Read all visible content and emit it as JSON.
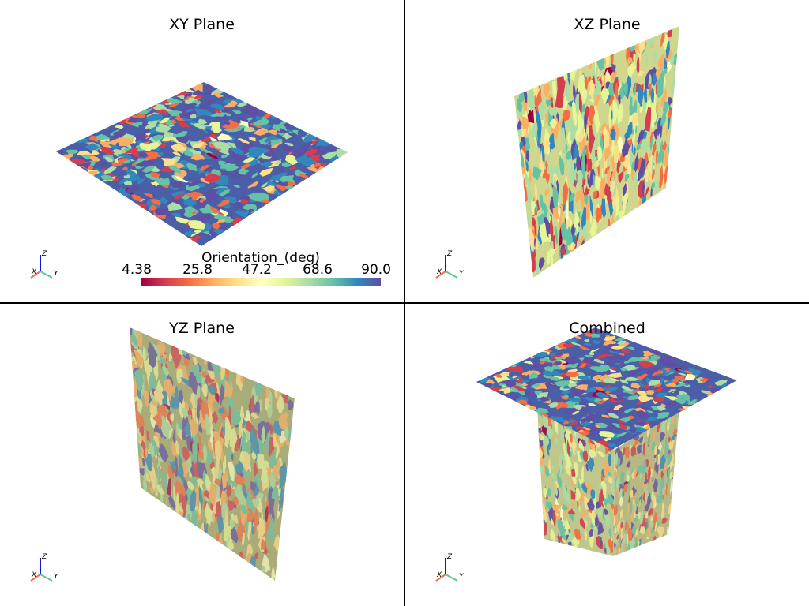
{
  "viewports": [
    {
      "id": "xy",
      "title": "XY Plane"
    },
    {
      "id": "xz",
      "title": "XZ Plane"
    },
    {
      "id": "yz",
      "title": "YZ Plane"
    },
    {
      "id": "combined",
      "title": "Combined"
    }
  ],
  "axes_labels": {
    "x": "X",
    "y": "Y",
    "z": "Z"
  },
  "axes_colors": {
    "x": "#e8764a",
    "y": "#63c58f",
    "z": "#1515d8"
  },
  "colorbar": {
    "title": "Orientation_(deg)",
    "ticks": [
      "4.38",
      "25.8",
      "47.2",
      "68.6",
      "90.0"
    ],
    "range": [
      4.38,
      90.0
    ],
    "colormap": [
      "#9e0142",
      "#d53e4f",
      "#f46d43",
      "#fdae61",
      "#fee08b",
      "#ffffbf",
      "#e6f598",
      "#abdda4",
      "#66c2a5",
      "#3288bd",
      "#5e4fa2"
    ]
  }
}
